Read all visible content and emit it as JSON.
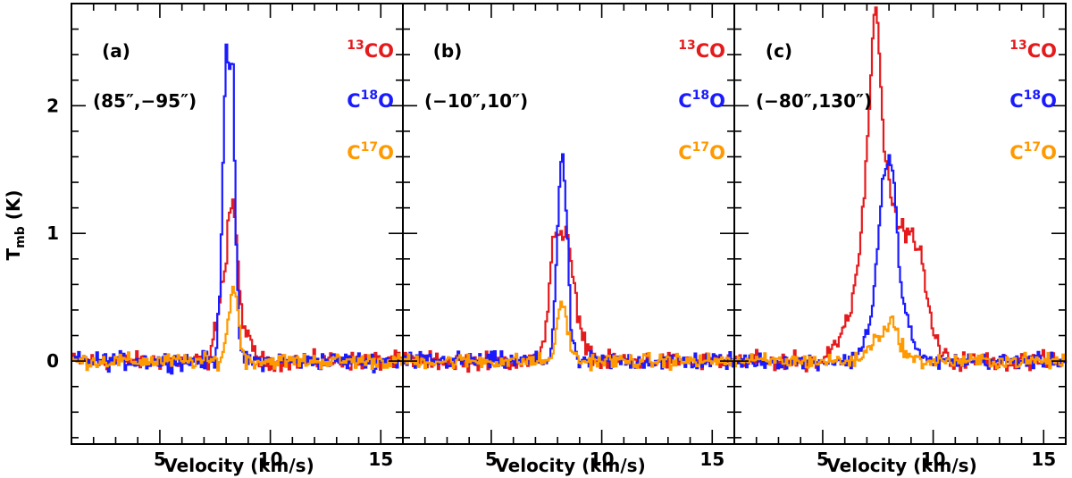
{
  "chart_data": {
    "type": "line",
    "style": "step histogram",
    "ylabel": "T",
    "ylabel_sub": "mb",
    "ylabel_unit": "(K)",
    "xlim": [
      1,
      16
    ],
    "ylim": [
      -0.65,
      2.8
    ],
    "x_ticks": [
      5,
      10,
      15
    ],
    "y_ticks": [
      0,
      1,
      2
    ],
    "series_colors": {
      "13CO": "#e41a1c",
      "C18O": "#1a1aff",
      "C17O": "#ff9900"
    },
    "legend": [
      {
        "key": "13CO",
        "pre": "",
        "sup": "13",
        "post": "CO"
      },
      {
        "key": "C18O",
        "pre": "C",
        "sup": "18",
        "post": "O"
      },
      {
        "key": "C17O",
        "pre": "C",
        "sup": "17",
        "post": "O"
      }
    ],
    "panels": [
      {
        "id": "a",
        "label": "(a)",
        "position": "(85″,−95″)",
        "xlabel": "Velocity (km/s)",
        "series": [
          {
            "key": "13CO",
            "noise": 0.06,
            "profile": [
              [
                7.3,
                0.05
              ],
              [
                7.6,
                0.35
              ],
              [
                7.8,
                0.62
              ],
              [
                8.0,
                0.72
              ],
              [
                8.1,
                1.15
              ],
              [
                8.25,
                1.22
              ],
              [
                8.4,
                1.15
              ],
              [
                8.6,
                0.55
              ],
              [
                8.8,
                0.28
              ],
              [
                9.1,
                0.12
              ],
              [
                9.5,
                0.03
              ]
            ]
          },
          {
            "key": "C18O",
            "noise": 0.06,
            "profile": [
              [
                7.5,
                0.0
              ],
              [
                7.7,
                0.45
              ],
              [
                7.85,
                1.5
              ],
              [
                8.0,
                2.5
              ],
              [
                8.15,
                2.3
              ],
              [
                8.3,
                2.42
              ],
              [
                8.45,
                0.9
              ],
              [
                8.6,
                0.2
              ],
              [
                8.8,
                0.02
              ]
            ]
          },
          {
            "key": "C17O",
            "noise": 0.05,
            "profile": [
              [
                7.7,
                0.0
              ],
              [
                7.9,
                0.1
              ],
              [
                8.1,
                0.3
              ],
              [
                8.3,
                0.63
              ],
              [
                8.5,
                0.45
              ],
              [
                8.7,
                0.12
              ],
              [
                8.9,
                0.02
              ]
            ]
          }
        ]
      },
      {
        "id": "b",
        "label": "(b)",
        "position": "(−10″,10″)",
        "xlabel": "Velocity (km/s)",
        "series": [
          {
            "key": "13CO",
            "noise": 0.06,
            "profile": [
              [
                7.2,
                0.0
              ],
              [
                7.5,
                0.3
              ],
              [
                7.8,
                1.0
              ],
              [
                8.0,
                1.02
              ],
              [
                8.2,
                0.95
              ],
              [
                8.4,
                1.0
              ],
              [
                8.6,
                0.8
              ],
              [
                8.8,
                0.5
              ],
              [
                9.0,
                0.3
              ],
              [
                9.3,
                0.12
              ],
              [
                9.7,
                0.03
              ]
            ]
          },
          {
            "key": "C18O",
            "noise": 0.06,
            "profile": [
              [
                7.6,
                0.0
              ],
              [
                7.8,
                0.25
              ],
              [
                8.0,
                1.0
              ],
              [
                8.15,
                1.58
              ],
              [
                8.3,
                1.5
              ],
              [
                8.45,
                0.95
              ],
              [
                8.6,
                0.3
              ],
              [
                8.8,
                0.02
              ]
            ]
          },
          {
            "key": "C17O",
            "noise": 0.05,
            "profile": [
              [
                7.6,
                0.0
              ],
              [
                7.9,
                0.15
              ],
              [
                8.15,
                0.48
              ],
              [
                8.35,
                0.38
              ],
              [
                8.6,
                0.12
              ],
              [
                8.9,
                0.0
              ]
            ]
          }
        ]
      },
      {
        "id": "c",
        "label": "(c)",
        "position": "(−80″,130″)",
        "xlabel": "Velocity (km/s)",
        "series": [
          {
            "key": "13CO",
            "noise": 0.06,
            "profile": [
              [
                5.0,
                0.0
              ],
              [
                5.8,
                0.2
              ],
              [
                6.3,
                0.45
              ],
              [
                6.7,
                0.9
              ],
              [
                7.0,
                1.6
              ],
              [
                7.3,
                2.7
              ],
              [
                7.45,
                2.85
              ],
              [
                7.6,
                2.3
              ],
              [
                7.8,
                1.6
              ],
              [
                8.0,
                1.4
              ],
              [
                8.2,
                1.2
              ],
              [
                8.5,
                1.05
              ],
              [
                8.9,
                1.0
              ],
              [
                9.2,
                0.95
              ],
              [
                9.5,
                0.8
              ],
              [
                9.7,
                0.5
              ],
              [
                10.0,
                0.25
              ],
              [
                10.3,
                0.08
              ],
              [
                10.7,
                0.0
              ]
            ]
          },
          {
            "key": "C18O",
            "noise": 0.05,
            "profile": [
              [
                6.3,
                0.0
              ],
              [
                6.8,
                0.12
              ],
              [
                7.2,
                0.35
              ],
              [
                7.5,
                0.9
              ],
              [
                7.7,
                1.4
              ],
              [
                7.9,
                1.5
              ],
              [
                8.05,
                1.6
              ],
              [
                8.2,
                1.45
              ],
              [
                8.4,
                0.95
              ],
              [
                8.6,
                0.5
              ],
              [
                8.9,
                0.28
              ],
              [
                9.2,
                0.12
              ],
              [
                9.5,
                0.03
              ]
            ]
          },
          {
            "key": "C17O",
            "noise": 0.05,
            "profile": [
              [
                6.5,
                0.0
              ],
              [
                7.0,
                0.08
              ],
              [
                7.5,
                0.2
              ],
              [
                8.0,
                0.28
              ],
              [
                8.15,
                0.32
              ],
              [
                8.4,
                0.2
              ],
              [
                8.8,
                0.05
              ],
              [
                9.2,
                0.0
              ]
            ]
          }
        ]
      }
    ]
  }
}
